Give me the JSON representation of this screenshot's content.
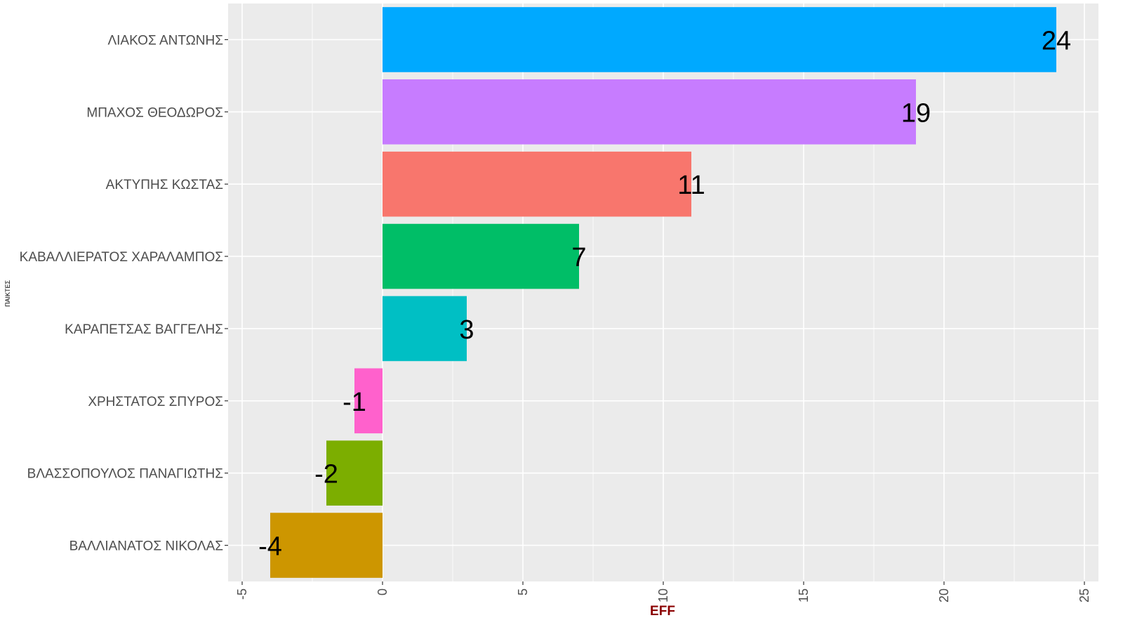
{
  "chart_data": {
    "type": "bar",
    "orientation": "horizontal",
    "title": "",
    "xlabel": "EFF",
    "ylabel": "ΠΑΙΚΤΕΣ",
    "xlim": [
      -5.5,
      25.5
    ],
    "x_ticks": [
      -5,
      0,
      5,
      10,
      15,
      20,
      25
    ],
    "grid": true,
    "legend": "none",
    "categories": [
      "ΛΙΑΚΟΣ ΑΝΤΩΝΗΣ",
      "ΜΠΑΧΟΣ ΘΕΟΔΩΡΟΣ",
      "ΑΚΤΥΠΗΣ ΚΩΣΤΑΣ",
      "ΚΑΒΑΛΛΙΕΡΑΤΟΣ ΧΑΡΑΛΑΜΠΟΣ",
      "ΚΑΡΑΠΕΤΣΑΣ ΒΑΓΓΕΛΗΣ",
      "ΧΡΗΣΤΑΤΟΣ ΣΠΥΡΟΣ",
      "ΒΛΑΣΣΟΠΟΥΛΟΣ ΠΑΝΑΓΙΩΤΗΣ",
      "ΒΑΛΛΙΑΝΑΤΟΣ ΝΙΚΟΛΑΣ"
    ],
    "values": [
      24,
      19,
      11,
      7,
      3,
      -1,
      -2,
      -4
    ],
    "colors": [
      "#00A9FF",
      "#C77CFF",
      "#F8766D",
      "#00BE67",
      "#00BFC4",
      "#FF61CC",
      "#7CAE00",
      "#CD9600"
    ]
  },
  "style": {
    "panel_bg": "#EBEBEB",
    "grid_color": "#FFFFFF",
    "x_title_color": "#8B0000"
  }
}
